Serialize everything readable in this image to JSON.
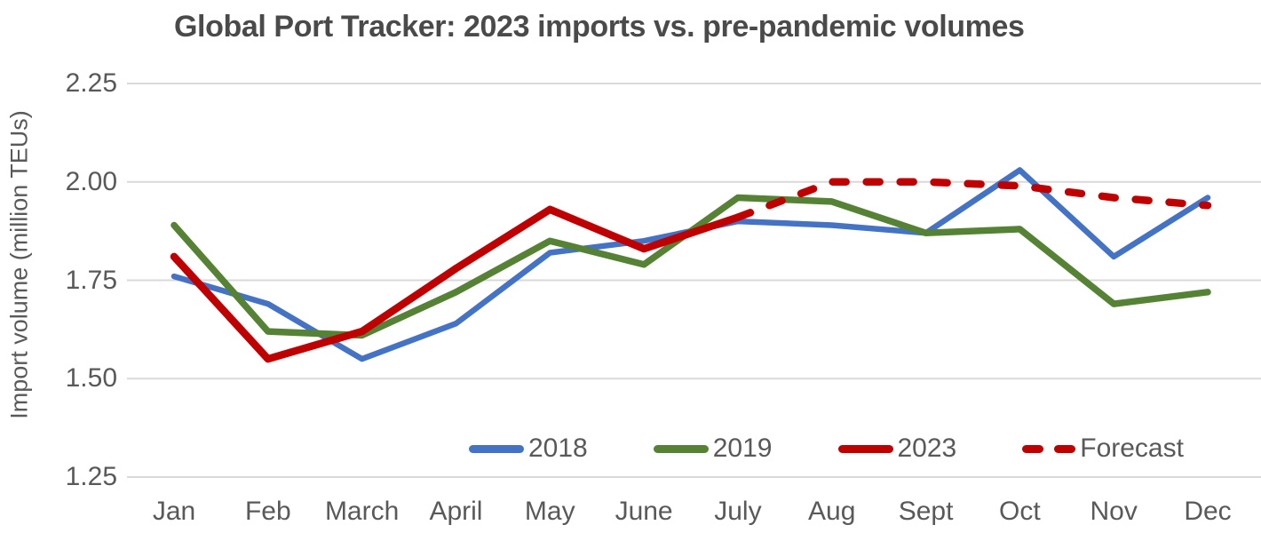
{
  "colors": {
    "background": "#FFFFFF",
    "grid": "#D9D9D9",
    "title_text": "#4A4A4A",
    "axis_text": "#595959",
    "series_2018": "#4472C4",
    "series_2019": "#568235",
    "series_2023": "#C00000",
    "series_forecast": "#C00000"
  },
  "chart_data": {
    "type": "line",
    "title": "Global Port Tracker: 2023 imports vs. pre-pandemic volumes",
    "xlabel": "",
    "ylabel": "Import volume (million TEUs)",
    "ylim": [
      1.25,
      2.25
    ],
    "yticks": [
      2.25,
      2.0,
      1.75,
      1.5,
      1.25
    ],
    "ytick_labels": [
      "2.25",
      "2.00",
      "1.75",
      "1.50",
      "1.25"
    ],
    "grid": true,
    "legend_position": "bottom",
    "categories": [
      "Jan",
      "Feb",
      "March",
      "April",
      "May",
      "June",
      "July",
      "Aug",
      "Sept",
      "Oct",
      "Nov",
      "Dec"
    ],
    "series": [
      {
        "name": "2018",
        "color": "#4472C4",
        "dashed": false,
        "values": [
          1.76,
          1.69,
          1.55,
          1.64,
          1.82,
          1.85,
          1.9,
          1.89,
          1.87,
          2.03,
          1.81,
          1.96
        ]
      },
      {
        "name": "2019",
        "color": "#568235",
        "dashed": false,
        "values": [
          1.89,
          1.62,
          1.61,
          1.72,
          1.85,
          1.79,
          1.96,
          1.95,
          1.87,
          1.88,
          1.69,
          1.72
        ]
      },
      {
        "name": "2023",
        "color": "#C00000",
        "dashed": false,
        "values": [
          1.81,
          1.55,
          1.62,
          1.78,
          1.93,
          1.83,
          1.91,
          null,
          null,
          null,
          null,
          null
        ]
      },
      {
        "name": "Forecast",
        "color": "#C00000",
        "dashed": true,
        "values": [
          null,
          null,
          null,
          null,
          null,
          null,
          1.91,
          2.0,
          2.0,
          1.99,
          1.96,
          1.94
        ]
      }
    ]
  }
}
